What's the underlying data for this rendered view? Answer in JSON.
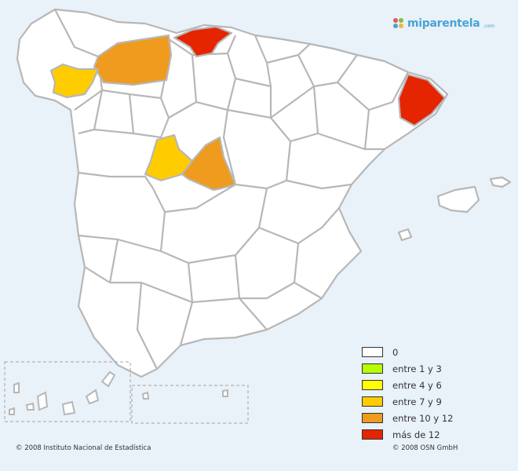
{
  "logo": {
    "name": "miparentela",
    "tld": ".com",
    "colors": [
      "#e25b5b",
      "#7cc242",
      "#4aa3d4",
      "#f3b63f"
    ]
  },
  "legend": [
    {
      "label": "0",
      "color": "#ffffff"
    },
    {
      "label": "entre 1 y 3",
      "color": "#b6ff00"
    },
    {
      "label": "entre 4 y 6",
      "color": "#ffff00"
    },
    {
      "label": "entre 7 y 9",
      "color": "#ffcc00"
    },
    {
      "label": "entre 10 y 12",
      "color": "#ee9b1e"
    },
    {
      "label": "más de 12",
      "color": "#e52400"
    }
  ],
  "footer": {
    "left": "© 2008 Instituto Nacional de Estadística",
    "right": "© 2008 OSN GmbH"
  }
}
